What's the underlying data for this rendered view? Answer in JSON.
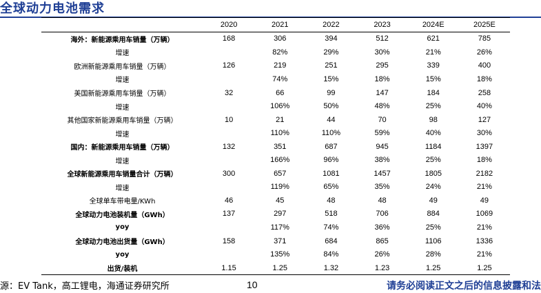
{
  "title": "全球动力电池需求",
  "table": {
    "headers": [
      "",
      "2020",
      "2021",
      "2022",
      "2023",
      "2024E",
      "2025E"
    ],
    "rows": [
      {
        "label": "海外：新能源乘用车销量（万辆）",
        "bold": true,
        "values": [
          "168",
          "306",
          "394",
          "512",
          "621",
          "785"
        ]
      },
      {
        "label": "增速",
        "bold": false,
        "values": [
          "",
          "82%",
          "29%",
          "30%",
          "21%",
          "26%"
        ]
      },
      {
        "label": "欧洲新能源乘用车销量（万辆）",
        "bold": false,
        "values": [
          "126",
          "219",
          "251",
          "295",
          "339",
          "400"
        ]
      },
      {
        "label": "增速",
        "bold": false,
        "values": [
          "",
          "74%",
          "15%",
          "18%",
          "15%",
          "18%"
        ]
      },
      {
        "label": "美国新能源乘用车销量（万辆）",
        "bold": false,
        "values": [
          "32",
          "66",
          "99",
          "147",
          "184",
          "258"
        ]
      },
      {
        "label": "增速",
        "bold": false,
        "values": [
          "",
          "106%",
          "50%",
          "48%",
          "25%",
          "40%"
        ]
      },
      {
        "label": "其他国家新能源乘用车销量（万辆）",
        "bold": false,
        "values": [
          "10",
          "21",
          "44",
          "70",
          "98",
          "127"
        ]
      },
      {
        "label": "增速",
        "bold": false,
        "values": [
          "",
          "110%",
          "110%",
          "59%",
          "40%",
          "30%"
        ]
      },
      {
        "label": "国内：新能源乘用车销量（万辆）",
        "bold": true,
        "values": [
          "132",
          "351",
          "687",
          "945",
          "1184",
          "1397"
        ]
      },
      {
        "label": "增速",
        "bold": false,
        "values": [
          "",
          "166%",
          "96%",
          "38%",
          "25%",
          "18%"
        ]
      },
      {
        "label": "全球新能源乘用车销量合计（万辆）",
        "bold": true,
        "values": [
          "300",
          "657",
          "1081",
          "1457",
          "1805",
          "2182"
        ]
      },
      {
        "label": "增速",
        "bold": false,
        "values": [
          "",
          "119%",
          "65%",
          "35%",
          "24%",
          "21%"
        ]
      },
      {
        "label": "全球单车带电量/KWh",
        "bold": false,
        "values": [
          "46",
          "45",
          "48",
          "48",
          "49",
          "49"
        ]
      },
      {
        "label": "全球动力电池装机量（GWh）",
        "bold": true,
        "values": [
          "137",
          "297",
          "518",
          "706",
          "884",
          "1069"
        ]
      },
      {
        "label": "yoy",
        "bold": true,
        "values": [
          "",
          "117%",
          "74%",
          "36%",
          "25%",
          "21%"
        ]
      },
      {
        "label": "全球动力电池出货量（GWh）",
        "bold": true,
        "values": [
          "158",
          "371",
          "684",
          "865",
          "1106",
          "1336"
        ]
      },
      {
        "label": "yoy",
        "bold": true,
        "values": [
          "",
          "135%",
          "84%",
          "26%",
          "28%",
          "21%"
        ]
      },
      {
        "label": "出货/装机",
        "bold": true,
        "values": [
          "1.15",
          "1.25",
          "1.32",
          "1.23",
          "1.25",
          "1.25"
        ]
      }
    ]
  },
  "footer": {
    "source": "源：EV Tank，高工锂电，海通证券研究所",
    "page": "10",
    "notice": "请务必阅读正文之后的信息披露和法"
  },
  "colors": {
    "accent": "#1f3f95"
  }
}
